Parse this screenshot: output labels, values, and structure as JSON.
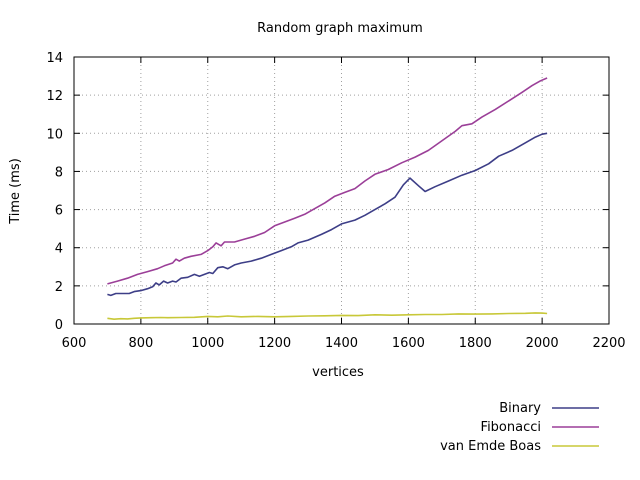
{
  "chart_data": {
    "type": "line",
    "title": "Random graph maximum",
    "xlabel": "vertices",
    "ylabel": "Time (ms)",
    "xlim": [
      600,
      2200
    ],
    "ylim": [
      0,
      14
    ],
    "x_ticks": [
      600,
      800,
      1000,
      1200,
      1400,
      1600,
      1800,
      2000,
      2200
    ],
    "y_ticks": [
      0,
      2,
      4,
      6,
      8,
      10,
      12,
      14
    ],
    "grid": true,
    "legend_position": "bottom-right",
    "series": [
      {
        "name": "Binary",
        "color": "#3d3e87",
        "points": [
          [
            700,
            1.55
          ],
          [
            710,
            1.5
          ],
          [
            725,
            1.6
          ],
          [
            745,
            1.6
          ],
          [
            765,
            1.6
          ],
          [
            780,
            1.7
          ],
          [
            800,
            1.75
          ],
          [
            820,
            1.85
          ],
          [
            835,
            1.95
          ],
          [
            845,
            2.15
          ],
          [
            855,
            2.05
          ],
          [
            868,
            2.25
          ],
          [
            880,
            2.15
          ],
          [
            895,
            2.25
          ],
          [
            905,
            2.2
          ],
          [
            920,
            2.4
          ],
          [
            940,
            2.45
          ],
          [
            960,
            2.6
          ],
          [
            975,
            2.5
          ],
          [
            990,
            2.6
          ],
          [
            1005,
            2.7
          ],
          [
            1015,
            2.65
          ],
          [
            1030,
            2.95
          ],
          [
            1045,
            3.0
          ],
          [
            1060,
            2.9
          ],
          [
            1080,
            3.1
          ],
          [
            1100,
            3.2
          ],
          [
            1130,
            3.3
          ],
          [
            1160,
            3.45
          ],
          [
            1190,
            3.65
          ],
          [
            1220,
            3.85
          ],
          [
            1250,
            4.05
          ],
          [
            1270,
            4.25
          ],
          [
            1300,
            4.4
          ],
          [
            1340,
            4.7
          ],
          [
            1370,
            4.95
          ],
          [
            1400,
            5.25
          ],
          [
            1440,
            5.45
          ],
          [
            1470,
            5.7
          ],
          [
            1500,
            6.0
          ],
          [
            1530,
            6.3
          ],
          [
            1560,
            6.65
          ],
          [
            1585,
            7.3
          ],
          [
            1605,
            7.65
          ],
          [
            1630,
            7.25
          ],
          [
            1650,
            6.95
          ],
          [
            1680,
            7.2
          ],
          [
            1720,
            7.5
          ],
          [
            1760,
            7.8
          ],
          [
            1800,
            8.05
          ],
          [
            1840,
            8.4
          ],
          [
            1870,
            8.8
          ],
          [
            1910,
            9.1
          ],
          [
            1950,
            9.5
          ],
          [
            1980,
            9.8
          ],
          [
            2000,
            9.95
          ],
          [
            2015,
            10.0
          ]
        ]
      },
      {
        "name": "Fibonacci",
        "color": "#9b3f98",
        "points": [
          [
            700,
            2.1
          ],
          [
            730,
            2.25
          ],
          [
            760,
            2.4
          ],
          [
            790,
            2.6
          ],
          [
            820,
            2.75
          ],
          [
            850,
            2.9
          ],
          [
            870,
            3.05
          ],
          [
            895,
            3.2
          ],
          [
            905,
            3.4
          ],
          [
            915,
            3.3
          ],
          [
            930,
            3.45
          ],
          [
            950,
            3.55
          ],
          [
            980,
            3.65
          ],
          [
            1000,
            3.85
          ],
          [
            1015,
            4.05
          ],
          [
            1025,
            4.25
          ],
          [
            1040,
            4.1
          ],
          [
            1050,
            4.3
          ],
          [
            1080,
            4.3
          ],
          [
            1110,
            4.45
          ],
          [
            1140,
            4.6
          ],
          [
            1170,
            4.8
          ],
          [
            1200,
            5.15
          ],
          [
            1230,
            5.35
          ],
          [
            1260,
            5.55
          ],
          [
            1290,
            5.75
          ],
          [
            1320,
            6.05
          ],
          [
            1350,
            6.35
          ],
          [
            1380,
            6.7
          ],
          [
            1410,
            6.9
          ],
          [
            1440,
            7.1
          ],
          [
            1470,
            7.5
          ],
          [
            1500,
            7.85
          ],
          [
            1540,
            8.1
          ],
          [
            1580,
            8.45
          ],
          [
            1620,
            8.75
          ],
          [
            1660,
            9.1
          ],
          [
            1700,
            9.6
          ],
          [
            1740,
            10.1
          ],
          [
            1760,
            10.4
          ],
          [
            1790,
            10.5
          ],
          [
            1820,
            10.85
          ],
          [
            1860,
            11.25
          ],
          [
            1900,
            11.7
          ],
          [
            1940,
            12.15
          ],
          [
            1970,
            12.5
          ],
          [
            1995,
            12.75
          ],
          [
            2015,
            12.9
          ]
        ]
      },
      {
        "name": "van Emde Boas",
        "color": "#c8c838",
        "points": [
          [
            700,
            0.3
          ],
          [
            720,
            0.25
          ],
          [
            740,
            0.28
          ],
          [
            760,
            0.27
          ],
          [
            780,
            0.3
          ],
          [
            800,
            0.32
          ],
          [
            830,
            0.33
          ],
          [
            860,
            0.34
          ],
          [
            880,
            0.33
          ],
          [
            920,
            0.34
          ],
          [
            960,
            0.35
          ],
          [
            1000,
            0.4
          ],
          [
            1030,
            0.38
          ],
          [
            1060,
            0.42
          ],
          [
            1100,
            0.38
          ],
          [
            1150,
            0.4
          ],
          [
            1200,
            0.38
          ],
          [
            1250,
            0.4
          ],
          [
            1300,
            0.42
          ],
          [
            1350,
            0.43
          ],
          [
            1400,
            0.45
          ],
          [
            1450,
            0.44
          ],
          [
            1500,
            0.48
          ],
          [
            1550,
            0.46
          ],
          [
            1600,
            0.48
          ],
          [
            1650,
            0.5
          ],
          [
            1700,
            0.5
          ],
          [
            1750,
            0.53
          ],
          [
            1800,
            0.52
          ],
          [
            1850,
            0.53
          ],
          [
            1900,
            0.55
          ],
          [
            1950,
            0.56
          ],
          [
            1980,
            0.58
          ],
          [
            2000,
            0.57
          ],
          [
            2015,
            0.55
          ]
        ]
      }
    ]
  }
}
